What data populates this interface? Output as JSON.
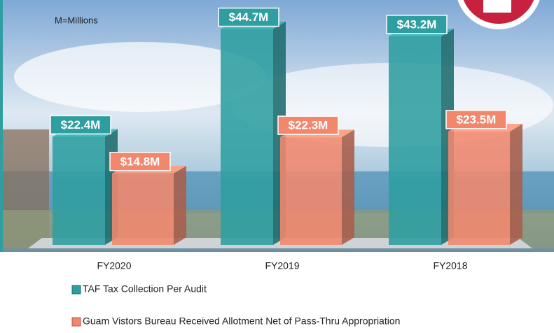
{
  "chart_data": {
    "type": "bar3d",
    "annotation": "M=Millions",
    "categories": [
      "FY2020",
      "FY2019",
      "FY2018"
    ],
    "series": [
      {
        "name": "TAF Tax Collection Per Audit",
        "color": "#2e9ea0",
        "values": [
          22.4,
          44.7,
          43.2
        ],
        "value_labels": [
          "$22.4M",
          "$44.7M",
          "$43.2M"
        ]
      },
      {
        "name": "Guam Vistors Bureau Received Allotment Net of Pass-Thru Appropriation",
        "color": "#f2876d",
        "values": [
          14.8,
          22.3,
          23.5
        ],
        "value_labels": [
          "$14.8M",
          "$22.3M",
          "$23.5M"
        ]
      }
    ]
  }
}
